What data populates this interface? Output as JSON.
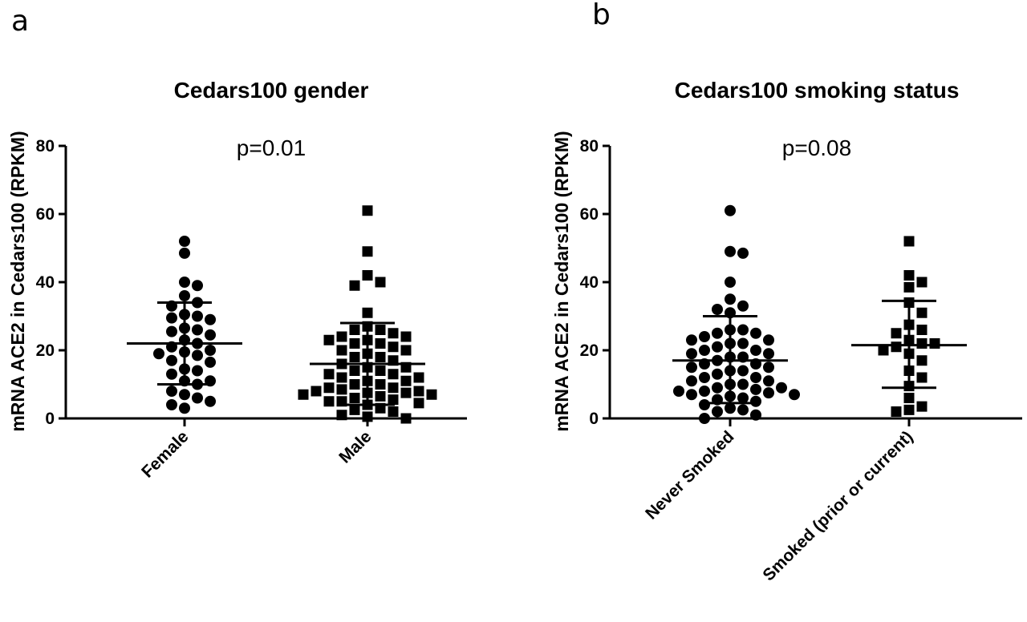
{
  "panels": [
    {
      "letter": "a",
      "pvalue": "p=0.01",
      "chart_data": {
        "type": "scatter",
        "title": "Cedars100 gender",
        "ylabel": "mRNA ACE2 in Cedars100 (RPKM)",
        "xlabel": "",
        "ylim": [
          0,
          80
        ],
        "yticks": [
          "0",
          "20",
          "40",
          "60",
          "80"
        ],
        "categories": [
          "Female",
          "Male"
        ],
        "series": [
          {
            "marker": "circle",
            "mean": 22,
            "sd_low": 10,
            "sd_high": 34,
            "values": [
              52,
              48.5,
              40,
              39,
              36,
              34,
              33,
              30.5,
              30,
              29.5,
              29,
              26.5,
              26,
              25.5,
              24.5,
              23,
              22,
              21,
              20,
              19.5,
              19,
              18.5,
              17,
              16.5,
              14.5,
              14,
              13,
              11,
              11,
              10,
              8,
              7,
              6,
              5,
              4,
              3
            ]
          },
          {
            "marker": "square",
            "mean": 16,
            "sd_low": 4,
            "sd_high": 28,
            "values": [
              61,
              49,
              42,
              40,
              39,
              31,
              27,
              26,
              26,
              25,
              24,
              24,
              23,
              23,
              22,
              22,
              21,
              20,
              20,
              19,
              18,
              18,
              17,
              16,
              15,
              15,
              14,
              14,
              13,
              13,
              12,
              12,
              11,
              11,
              10,
              10,
              9,
              9,
              8.5,
              8,
              8,
              7.5,
              7.5,
              7,
              7,
              6.5,
              6,
              5.5,
              5,
              5,
              4.5,
              4,
              3,
              2.5,
              2,
              1,
              0.5,
              0
            ]
          }
        ]
      }
    },
    {
      "letter": "b",
      "pvalue": "p=0.08",
      "chart_data": {
        "type": "scatter",
        "title": "Cedars100 smoking status",
        "ylabel": "mRNA ACE2 in Cedars100 (RPKM)",
        "xlabel": "",
        "ylim": [
          0,
          80
        ],
        "yticks": [
          "0",
          "20",
          "40",
          "60",
          "80"
        ],
        "categories": [
          "Never Smoked",
          "Smoked (prior or current)"
        ],
        "series": [
          {
            "marker": "circle",
            "mean": 17,
            "sd_low": 4.5,
            "sd_high": 30,
            "values": [
              61,
              49,
              48.5,
              40,
              35,
              33,
              32,
              31,
              26,
              26,
              25,
              25,
              24,
              23,
              23,
              22,
              22,
              21,
              20,
              20,
              19,
              19,
              18,
              18,
              17,
              16,
              16,
              15,
              15,
              14,
              14,
              13,
              12,
              12,
              11,
              11,
              10,
              10,
              9,
              9,
              8.5,
              8,
              8,
              7.5,
              7,
              7,
              6.5,
              6,
              5.5,
              5,
              4,
              3,
              2.5,
              2,
              1,
              0
            ]
          },
          {
            "marker": "square",
            "mean": 21.5,
            "sd_low": 9,
            "sd_high": 34.5,
            "values": [
              52,
              42,
              40,
              38.5,
              34,
              31,
              27.5,
              26,
              25,
              23,
              22,
              22,
              21,
              20,
              19,
              17,
              14,
              12,
              9.5,
              6,
              3.5,
              2.5,
              2
            ]
          }
        ]
      }
    }
  ]
}
